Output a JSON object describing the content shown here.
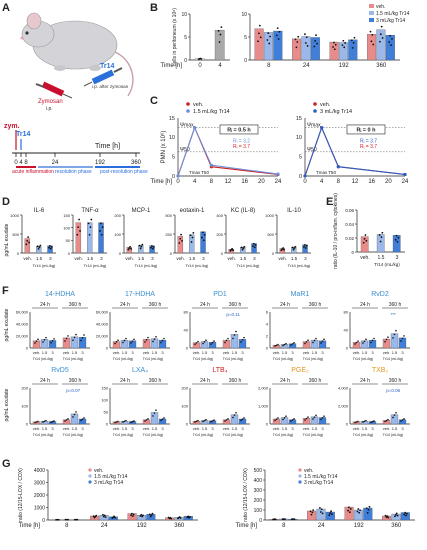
{
  "panels": {
    "A": {
      "letter": "A",
      "zymosan_label": "Zymosan",
      "zymosan_route": "i.p.",
      "tr14_label": "Tr14",
      "tr14_route": "i.p. after zymosan",
      "timeline": {
        "zym_label": "zym.",
        "tr14_label": "Tr14",
        "time_label": "Time [h]",
        "ticks": [
          "0",
          "4",
          "8",
          "24",
          "192",
          "360"
        ],
        "phase_acute": "acute inflammation",
        "phase_resolution": "resolution phase",
        "phase_post": "post-resolution phase"
      }
    },
    "B": {
      "letter": "B"
    },
    "C": {
      "letter": "C"
    },
    "D": {
      "letter": "D"
    },
    "E": {
      "letter": "E"
    },
    "F": {
      "letter": "F"
    },
    "G": {
      "letter": "G"
    }
  },
  "colors": {
    "veh": "#e88b8b",
    "tr14_low": "#9bb8e8",
    "tr14_high": "#3f7fd9",
    "dark": "#333333",
    "gray": "#aaaaaa",
    "red": "#cc2222",
    "blue": "#2255cc"
  },
  "legend": {
    "veh": "veh.",
    "tr14_low": "1.5 mL/kg Tr14",
    "tr14_high": "3 mL/kg Tr14"
  },
  "chart_data": [
    {
      "id": "B-left",
      "type": "bar",
      "ylabel": "cells in peritoneum (x 10⁶)",
      "xlabel": "Time [h]",
      "categories": [
        "0",
        "4"
      ],
      "values": [
        0.3,
        6.5
      ],
      "ylim": [
        0,
        10
      ],
      "yticks": [
        "0",
        "5",
        "10"
      ]
    },
    {
      "id": "B-right",
      "type": "bar",
      "ylabel": "cells in peritoneum (x 10⁶)",
      "categories": [
        "8",
        "24",
        "192",
        "360"
      ],
      "series": [
        {
          "name": "veh.",
          "values": [
            6.8,
            4.6,
            3.9,
            5.6
          ]
        },
        {
          "name": "1.5 mL/kg Tr14",
          "values": [
            6.0,
            5.1,
            3.8,
            6.6
          ]
        },
        {
          "name": "3 mL/kg Tr14",
          "values": [
            6.3,
            4.9,
            4.4,
            5.4
          ]
        }
      ],
      "ylim": [
        0,
        10
      ],
      "yticks": [
        "0",
        "5",
        "10"
      ]
    },
    {
      "id": "C-left",
      "type": "line",
      "ylabel": "PMN (x 10⁶)",
      "xlabel": "Time [h]",
      "x": [
        0,
        4,
        8,
        24
      ],
      "xticks": [
        "0",
        "4",
        "8",
        "12",
        "16",
        "20",
        "24"
      ],
      "yticks": [
        "0",
        "5",
        "10",
        "15"
      ],
      "ylim": [
        0,
        15
      ],
      "series": [
        {
          "name": "veh.",
          "values": [
            0,
            12.5,
            2.4,
            0.4
          ]
        },
        {
          "name": "1.5 mL/kg Tr14",
          "values": [
            0,
            12.5,
            2.8,
            0.5
          ]
        }
      ],
      "annotations": {
        "ymax": "Ψmax",
        "y50": "Ψ50",
        "t_max": "Tmax",
        "t50": "T50",
        "ri_box": "Rᵢ = 0.5 h",
        "ri_1": "Rᵢ = 3.2",
        "ri_2": "Rᵢ = 3.7"
      }
    },
    {
      "id": "C-right",
      "type": "line",
      "xlabel": "Time [h]",
      "x": [
        0,
        4,
        8,
        24
      ],
      "xticks": [
        "0",
        "4",
        "8",
        "12",
        "16",
        "20",
        "24"
      ],
      "yticks": [
        "0",
        "5",
        "10",
        "15"
      ],
      "ylim": [
        0,
        15
      ],
      "series": [
        {
          "name": "veh.",
          "values": [
            0,
            12.5,
            2.4,
            0.4
          ]
        },
        {
          "name": "3 mL/kg Tr14",
          "values": [
            0,
            12.5,
            2.4,
            0.4
          ]
        }
      ],
      "annotations": {
        "ymax": "Ψmax",
        "y50": "Ψ50",
        "t_max": "Tmax",
        "t50": "T50",
        "ri_box": "Rᵢ = 0 h",
        "ri_1": "Rᵢ = 3.7",
        "ri_2": "Rᵢ = 3.7"
      }
    },
    {
      "id": "D",
      "type": "bar",
      "ylabel": "pg/mL exudate",
      "subcharts": [
        {
          "title": "IL-6",
          "values": [
            380,
            180,
            190
          ],
          "ylim": [
            0,
            1000
          ],
          "yticks": [
            "0",
            "500",
            "1000"
          ]
        },
        {
          "title": "TNF-α",
          "values": [
            120,
            120,
            120
          ],
          "ylim": [
            0,
            150
          ],
          "yticks": [
            "0",
            "50",
            "100",
            "150"
          ]
        },
        {
          "title": "MCP-1",
          "values": [
            30,
            40,
            38
          ],
          "ylim": [
            0,
            200
          ],
          "yticks": [
            "0",
            "100",
            "200"
          ]
        },
        {
          "title": "eotaxin-1",
          "values": [
            220,
            240,
            280
          ],
          "ylim": [
            0,
            500
          ],
          "yticks": [
            "0",
            "250",
            "500"
          ]
        },
        {
          "title": "KC (IL-8)",
          "values": [
            40,
            60,
            100
          ],
          "ylim": [
            0,
            400
          ],
          "yticks": [
            "0",
            "200",
            "400"
          ]
        },
        {
          "title": "IL-10",
          "values": [
            120,
            150,
            220
          ],
          "ylim": [
            0,
            1000
          ],
          "yticks": [
            "0",
            "500",
            "1000"
          ]
        }
      ],
      "xticks": [
        "veh.",
        "1.5",
        "3"
      ],
      "xsub": "Tr14 (mL/kg)"
    },
    {
      "id": "E",
      "type": "bar",
      "ylabel": "ratio (IL-10 / pro-inflam. cytokines)",
      "categories": [
        "veh.",
        "1.5",
        "3"
      ],
      "xsub": "Tr14 (mL/kg)",
      "values": [
        0.022,
        0.025,
        0.024
      ],
      "ylim": [
        0,
        0.06
      ],
      "yticks": [
        "0",
        "0.02",
        "0.04",
        "0.06"
      ]
    },
    {
      "id": "F",
      "type": "bar",
      "ylabel": "pg/mL exudate",
      "timepoints": [
        "24 h",
        "360 h"
      ],
      "xticks": [
        "veh.",
        "1.5",
        "3"
      ],
      "xsub": "Tr14 (mL/kg)",
      "subcharts": [
        {
          "title": "14-HDHA",
          "color": "#3a8fd0",
          "values": [
            [
              20,
              24,
              21
            ],
            [
              28,
              31,
              30
            ]
          ],
          "ylim": [
            0,
            100
          ],
          "yticks": [
            "0",
            "20,000",
            "40,000",
            "60,000"
          ]
        },
        {
          "title": "17-HDHA",
          "color": "#3a8fd0",
          "values": [
            [
              18,
              22,
              20
            ],
            [
              24,
              26,
              22
            ]
          ],
          "ylim": [
            0,
            100
          ],
          "yticks": [
            "0",
            "20,000",
            "40,000",
            "60,000"
          ]
        },
        {
          "title": "PD1",
          "color": "#3a8fd0",
          "values": [
            [
              15,
              18,
              16
            ],
            [
              22,
              38,
              24
            ]
          ],
          "ylim": [
            0,
            100
          ],
          "yticks": [
            "0",
            "40",
            "80"
          ],
          "pvalue": "p=0.11"
        },
        {
          "title": "MaR1",
          "color": "#3a8fd0",
          "values": [
            [
              8,
              10,
              12
            ],
            [
              18,
              22,
              20
            ]
          ],
          "ylim": [
            0,
            100
          ],
          "yticks": [
            "0",
            "2",
            "4",
            "6"
          ]
        },
        {
          "title": "RvD2",
          "color": "#3a8fd0",
          "values": [
            [
              16,
              20,
              22
            ],
            [
              25,
              40,
              28
            ]
          ],
          "ylim": [
            0,
            100
          ],
          "yticks": [
            "0",
            "40",
            "80"
          ],
          "pvalue": "***"
        },
        {
          "title": "RvD5",
          "color": "#3a8fd0",
          "values": [
            [
              6,
              8,
              7
            ],
            [
              12,
              28,
              14
            ]
          ],
          "ylim": [
            0,
            100
          ],
          "yticks": [
            "0",
            "100",
            "200"
          ],
          "pvalue": "p=0.07"
        },
        {
          "title": "LXA₄",
          "color": "#3a8fd0",
          "values": [
            [
              6,
              8,
              7
            ],
            [
              12,
              32,
              14
            ]
          ],
          "ylim": [
            0,
            100
          ],
          "yticks": [
            "0",
            "50",
            "100",
            "150"
          ]
        },
        {
          "title": "LTB₄",
          "color": "#cc2222",
          "values": [
            [
              8,
              10,
              9
            ],
            [
              12,
              26,
              14
            ]
          ],
          "ylim": [
            0,
            100
          ],
          "yticks": [
            "0",
            "100",
            "200"
          ]
        },
        {
          "title": "PGE₂",
          "color": "#e39a1e",
          "values": [
            [
              14,
              18,
              12
            ],
            [
              16,
              20,
              18
            ]
          ],
          "ylim": [
            0,
            100
          ],
          "yticks": [
            "0",
            "1,000",
            "2,000"
          ]
        },
        {
          "title": "TXB₂",
          "color": "#e39a1e",
          "values": [
            [
              6,
              8,
              7
            ],
            [
              10,
              26,
              12
            ]
          ],
          "ylim": [
            0,
            100
          ],
          "yticks": [
            "0",
            "2,000",
            "4,000"
          ],
          "pvalue": "p=0.06"
        }
      ]
    },
    {
      "id": "G-left",
      "type": "bar",
      "ylabel": "ratio (12/15-LOX / COX)",
      "xlabel": "Time [h]",
      "categories": [
        "8",
        "24",
        "192",
        "360"
      ],
      "series": [
        {
          "name": "veh.",
          "values": [
            20,
            320,
            520,
            180
          ]
        },
        {
          "name": "1.5 mL/kg Tr14",
          "values": [
            30,
            380,
            380,
            220
          ]
        },
        {
          "name": "3 mL/kg Tr14",
          "values": [
            25,
            260,
            460,
            300
          ]
        }
      ],
      "ylim": [
        0,
        4000
      ],
      "yticks": [
        "0",
        "1000",
        "2000",
        "3000",
        "4000"
      ]
    },
    {
      "id": "G-right",
      "type": "bar",
      "ylabel": "ratio (12/15-LOX / COX)",
      "xlabel": "Time [h]",
      "categories": [
        "8",
        "24",
        "192",
        "360"
      ],
      "series": [
        {
          "name": "veh.",
          "values": [
            8,
            90,
            130,
            40
          ]
        },
        {
          "name": "1.5 mL/kg Tr14",
          "values": [
            10,
            110,
            100,
            60
          ]
        },
        {
          "name": "3 mL/kg Tr14",
          "values": [
            9,
            80,
            120,
            75
          ]
        }
      ],
      "ylim": [
        0,
        500
      ],
      "yticks": [
        "0",
        "100",
        "200",
        "300",
        "400",
        "500"
      ]
    }
  ]
}
